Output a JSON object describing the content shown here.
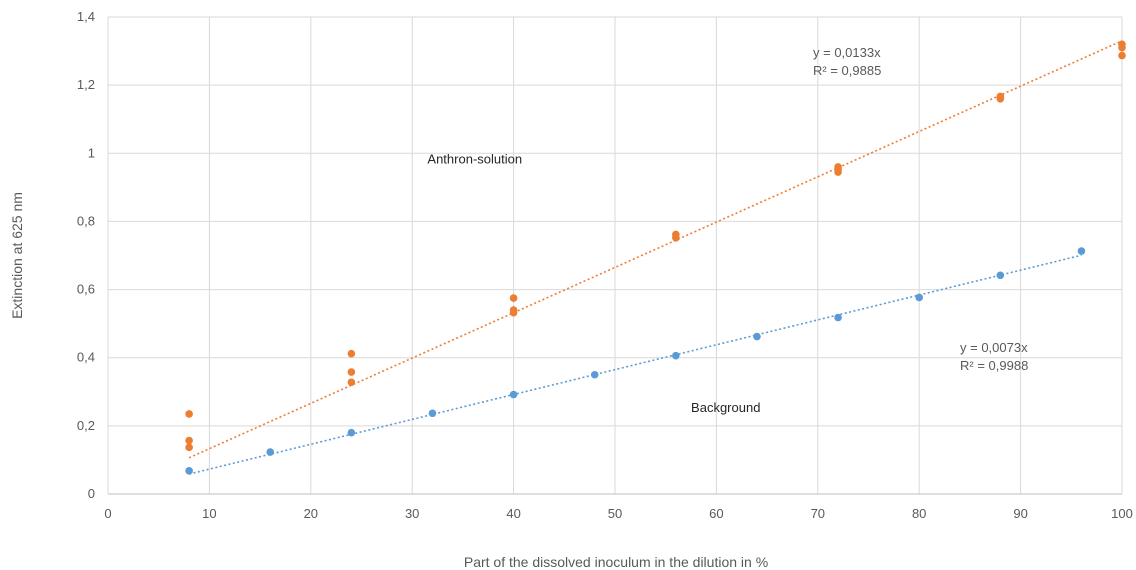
{
  "chart_data": {
    "type": "scatter",
    "xlabel": "Part of the dissolved inoculum in the dilution  in %",
    "ylabel": "Extinction at 625 nm",
    "xlim": [
      0,
      100
    ],
    "ylim": [
      0,
      1.4
    ],
    "x_ticks": [
      0,
      10,
      20,
      30,
      40,
      50,
      60,
      70,
      80,
      90,
      100
    ],
    "y_ticks": [
      0,
      0.2,
      0.4,
      0.6,
      0.8,
      1.0,
      1.2,
      1.4
    ],
    "x_tick_labels": [
      "0",
      "10",
      "20",
      "30",
      "40",
      "50",
      "60",
      "70",
      "80",
      "90",
      "100"
    ],
    "y_tick_labels": [
      "0",
      "0,2",
      "0,4",
      "0,6",
      "0,8",
      "1",
      "1,2",
      "1,4"
    ],
    "grid": true,
    "series": [
      {
        "name": "Anthron-solution",
        "color": "#ED7D31",
        "points": [
          [
            8,
            0.235
          ],
          [
            8,
            0.157
          ],
          [
            8,
            0.137
          ],
          [
            24,
            0.412
          ],
          [
            24,
            0.358
          ],
          [
            24,
            0.328
          ],
          [
            40,
            0.575
          ],
          [
            40,
            0.54
          ],
          [
            40,
            0.532
          ],
          [
            56,
            0.762
          ],
          [
            56,
            0.752
          ],
          [
            72,
            0.96
          ],
          [
            72,
            0.952
          ],
          [
            72,
            0.945
          ],
          [
            88,
            1.167
          ],
          [
            88,
            1.16
          ],
          [
            100,
            1.32
          ],
          [
            100,
            1.31
          ],
          [
            100,
            1.287
          ]
        ],
        "trendline": {
          "slope": 0.0133,
          "x_range": [
            8,
            100
          ],
          "equation": "y = 0,0133x",
          "r2": "R² = 0,9885"
        }
      },
      {
        "name": "Background",
        "color": "#5B9BD5",
        "points": [
          [
            8,
            0.068
          ],
          [
            16,
            0.123
          ],
          [
            24,
            0.18
          ],
          [
            32,
            0.237
          ],
          [
            40,
            0.292
          ],
          [
            48,
            0.35
          ],
          [
            56,
            0.406
          ],
          [
            64,
            0.462
          ],
          [
            72,
            0.518
          ],
          [
            80,
            0.577
          ],
          [
            88,
            0.642
          ],
          [
            96,
            0.713
          ]
        ],
        "trendline": {
          "slope": 0.0073,
          "x_range": [
            8,
            96
          ],
          "equation": "y = 0,0073x",
          "r2": "R² = 0,9988"
        }
      }
    ],
    "annotations": [
      {
        "text": "Anthron-solution",
        "x": 31.5,
        "y": 0.97
      },
      {
        "text": "Background",
        "x": 57.5,
        "y": 0.24
      }
    ]
  }
}
